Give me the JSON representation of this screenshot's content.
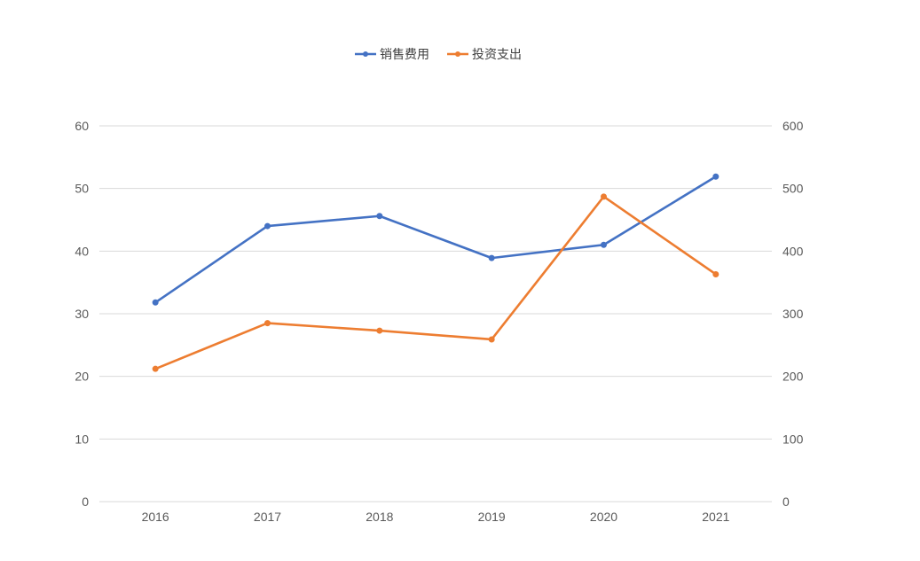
{
  "chart_data": {
    "type": "line",
    "x": [
      "2016",
      "2017",
      "2018",
      "2019",
      "2020",
      "2021"
    ],
    "y_left": {
      "ylim": [
        0,
        60
      ],
      "ticks": [
        0,
        10,
        20,
        30,
        40,
        50,
        60
      ]
    },
    "y_right": {
      "ylim": [
        0,
        600
      ],
      "ticks": [
        0,
        100,
        200,
        300,
        400,
        500,
        600
      ]
    },
    "grid": true,
    "legend_position": "top",
    "series": [
      {
        "name": "销售费用",
        "axis": "left",
        "color": "#4472c4",
        "values": [
          31.8,
          44.0,
          45.6,
          38.9,
          41.0,
          51.9
        ]
      },
      {
        "name": "投资支出",
        "axis": "right",
        "color": "#ed7d31",
        "values": [
          212,
          285,
          273,
          259,
          487,
          363
        ]
      }
    ]
  }
}
